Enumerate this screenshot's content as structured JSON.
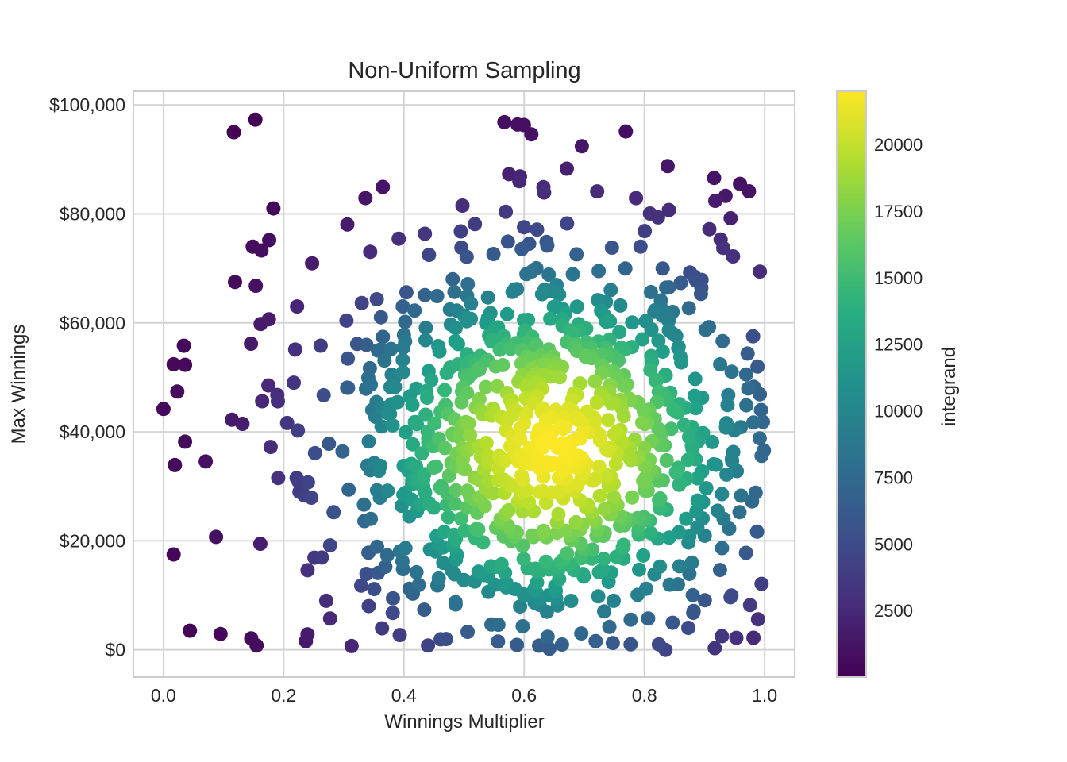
{
  "chart_data": {
    "type": "scatter",
    "title": "Non-Uniform Sampling",
    "xlabel": "Winnings Multiplier",
    "ylabel": "Max Winnings",
    "xlim": [
      -0.05,
      1.05
    ],
    "ylim": [
      -5000,
      102500
    ],
    "x_ticks": [
      0.0,
      0.2,
      0.4,
      0.6,
      0.8,
      1.0
    ],
    "x_tick_labels": [
      "0.0",
      "0.2",
      "0.4",
      "0.6",
      "0.8",
      "1.0"
    ],
    "y_ticks": [
      0,
      20000,
      40000,
      60000,
      80000,
      100000
    ],
    "y_tick_labels": [
      "$0",
      "$20,000",
      "$40,000",
      "$60,000",
      "$80,000",
      "$100,000"
    ],
    "grid": true,
    "colormap": "viridis",
    "colorbar": {
      "label": "integrand",
      "range": [
        0,
        22000
      ],
      "ticks": [
        2500,
        5000,
        7500,
        10000,
        12500,
        15000,
        17500,
        20000
      ],
      "tick_labels": [
        "2500",
        "5000",
        "7500",
        "10000",
        "12500",
        "15000",
        "17500",
        "20000"
      ]
    },
    "n_points": 1000,
    "color_value": "integrand",
    "points": [
      {
        "x": 0.117,
        "y": 95000
      },
      {
        "x": 0.153,
        "y": 97300
      },
      {
        "x": 0.589,
        "y": 96400
      },
      {
        "x": 0.612,
        "y": 94600
      },
      {
        "x": 0.696,
        "y": 92400
      },
      {
        "x": 0.671,
        "y": 88300
      },
      {
        "x": 0.592,
        "y": 86000
      },
      {
        "x": 0.632,
        "y": 84900
      },
      {
        "x": 0.916,
        "y": 86600
      },
      {
        "x": 0.935,
        "y": 83300
      },
      {
        "x": 0.918,
        "y": 82400
      },
      {
        "x": 0.786,
        "y": 82900
      },
      {
        "x": 0.336,
        "y": 82900
      },
      {
        "x": 0.183,
        "y": 81000
      },
      {
        "x": 0.0,
        "y": 44200
      },
      {
        "x": 0.017,
        "y": 52400
      },
      {
        "x": 0.034,
        "y": 55800
      },
      {
        "x": 0.036,
        "y": 52300
      },
      {
        "x": 0.023,
        "y": 47400
      },
      {
        "x": 0.019,
        "y": 33900
      },
      {
        "x": 0.036,
        "y": 38200
      },
      {
        "x": 0.017,
        "y": 17500
      },
      {
        "x": 0.044,
        "y": 3500
      },
      {
        "x": 0.095,
        "y": 2900
      },
      {
        "x": 0.155,
        "y": 800
      },
      {
        "x": 0.313,
        "y": 700
      },
      {
        "x": 0.237,
        "y": 1600
      },
      {
        "x": 0.44,
        "y": 800
      },
      {
        "x": 0.393,
        "y": 2700
      },
      {
        "x": 0.506,
        "y": 3300
      },
      {
        "x": 0.588,
        "y": 900
      },
      {
        "x": 0.639,
        "y": 2400
      },
      {
        "x": 0.642,
        "y": 200
      },
      {
        "x": 0.695,
        "y": 3000
      },
      {
        "x": 0.719,
        "y": 1600
      },
      {
        "x": 0.777,
        "y": 1000
      },
      {
        "x": 0.824,
        "y": 1000
      },
      {
        "x": 0.835,
        "y": 0
      },
      {
        "x": 0.917,
        "y": 300
      },
      {
        "x": 0.953,
        "y": 2200
      },
      {
        "x": 0.989,
        "y": 5600
      },
      {
        "x": 0.995,
        "y": 12100
      },
      {
        "x": 0.995,
        "y": 35600
      },
      {
        "x": 0.994,
        "y": 44000
      },
      {
        "x": 0.992,
        "y": 46900
      },
      {
        "x": 0.992,
        "y": 69400
      },
      {
        "x": 0.908,
        "y": 77200
      },
      {
        "x": 0.119,
        "y": 67500
      },
      {
        "x": 0.163,
        "y": 73300
      },
      {
        "x": 0.176,
        "y": 75200
      }
    ]
  }
}
